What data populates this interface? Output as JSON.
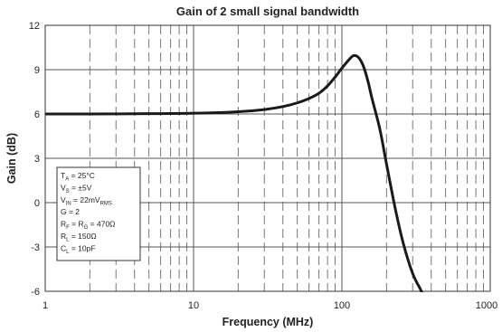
{
  "chart_data": {
    "type": "line",
    "title": "Gain of 2 small signal bandwidth",
    "xlabel": "Frequency (MHz)",
    "ylabel": "Gain (dB)",
    "x_scale": "log",
    "xlim": [
      1,
      1000
    ],
    "ylim": [
      -6,
      12
    ],
    "x_ticks": [
      {
        "value": 1,
        "label": "1"
      },
      {
        "value": 10,
        "label": "10"
      },
      {
        "value": 100,
        "label": "100"
      },
      {
        "value": 1000,
        "label": "1000"
      }
    ],
    "y_ticks": [
      {
        "value": 12,
        "label": "12"
      },
      {
        "value": 9,
        "label": "9"
      },
      {
        "value": 6,
        "label": "6"
      },
      {
        "value": 3,
        "label": "3"
      },
      {
        "value": 0,
        "label": "0"
      },
      {
        "value": -3,
        "label": "-3"
      },
      {
        "value": -6,
        "label": "-6"
      }
    ],
    "grid": true,
    "series": [
      {
        "x": [
          1,
          2,
          5,
          10,
          20,
          30,
          40,
          50,
          60,
          70,
          80,
          90,
          100,
          110,
          120,
          130,
          140,
          150,
          160,
          180,
          200,
          230,
          260,
          300,
          340,
          350
        ],
        "y": [
          6.0,
          6.0,
          6.02,
          6.05,
          6.15,
          6.3,
          6.5,
          6.75,
          7.05,
          7.4,
          7.9,
          8.5,
          9.1,
          9.6,
          9.95,
          9.8,
          9.2,
          8.2,
          7.0,
          5.0,
          2.6,
          -0.5,
          -2.8,
          -4.8,
          -5.9,
          -6.2
        ]
      }
    ],
    "annotation": {
      "location": "bottom-left",
      "lines": [
        {
          "main": "T",
          "sub": "A",
          "rest": " = 25°C"
        },
        {
          "main": "V",
          "sub": "S",
          "rest": " = ±5V"
        },
        {
          "main": "V",
          "sub": "IN",
          "rest": " = 22mV",
          "sub2": "RMS"
        },
        {
          "main": "G = 2",
          "sub": "",
          "rest": ""
        },
        {
          "main": "R",
          "sub": "F",
          "rest": " = R",
          "sub2": "G",
          "rest2": " = 470Ω"
        },
        {
          "main": "R",
          "sub": "L",
          "rest": " = 150Ω"
        },
        {
          "main": "C",
          "sub": "L",
          "rest": " = 10pF"
        }
      ]
    },
    "colors": {
      "line": "#1a1a1a",
      "grid_major": "#555555",
      "grid_minor": "#777777",
      "frame": "#333333"
    }
  }
}
